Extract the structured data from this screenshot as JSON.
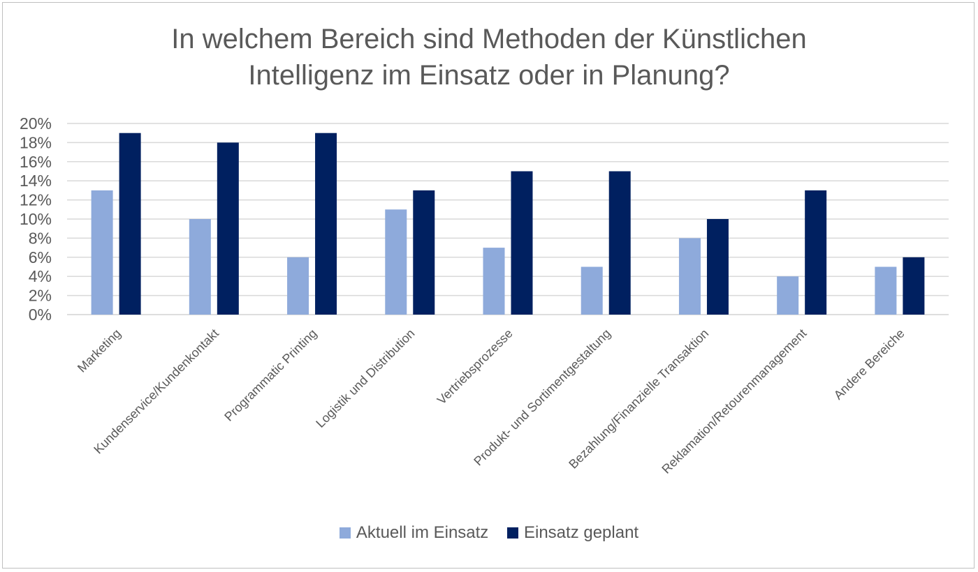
{
  "chart_data": {
    "type": "bar",
    "title_lines": [
      "In welchem Bereich sind Methoden der Künstlichen",
      "Intelligenz im Einsatz oder in Planung?"
    ],
    "categories": [
      "Marketing",
      "Kundenservice/Kundenkontakt",
      "Programmatic Printing",
      "Logistik und Distribution",
      "Vertriebsprozesse",
      "Produkt- und Sortimentgestaltung",
      "Bezahlung/Finanzielle Transaktion",
      "Reklamation/Retourenmanagement",
      "Andere Bereiche"
    ],
    "series": [
      {
        "name": "Aktuell im Einsatz",
        "color": "#8eaadb",
        "values": [
          13,
          10,
          6,
          11,
          7,
          5,
          8,
          4,
          5
        ]
      },
      {
        "name": "Einsatz geplant",
        "color": "#002060",
        "values": [
          19,
          18,
          19,
          13,
          15,
          15,
          10,
          13,
          6
        ]
      }
    ],
    "ylim": [
      0,
      20
    ],
    "yticks": [
      "0%",
      "2%",
      "4%",
      "6%",
      "8%",
      "10%",
      "12%",
      "14%",
      "16%",
      "18%",
      "20%"
    ],
    "ytick_values": [
      0,
      2,
      4,
      6,
      8,
      10,
      12,
      14,
      16,
      18,
      20
    ],
    "grid": true,
    "legend_position": "bottom",
    "xlabel": "",
    "ylabel": ""
  }
}
